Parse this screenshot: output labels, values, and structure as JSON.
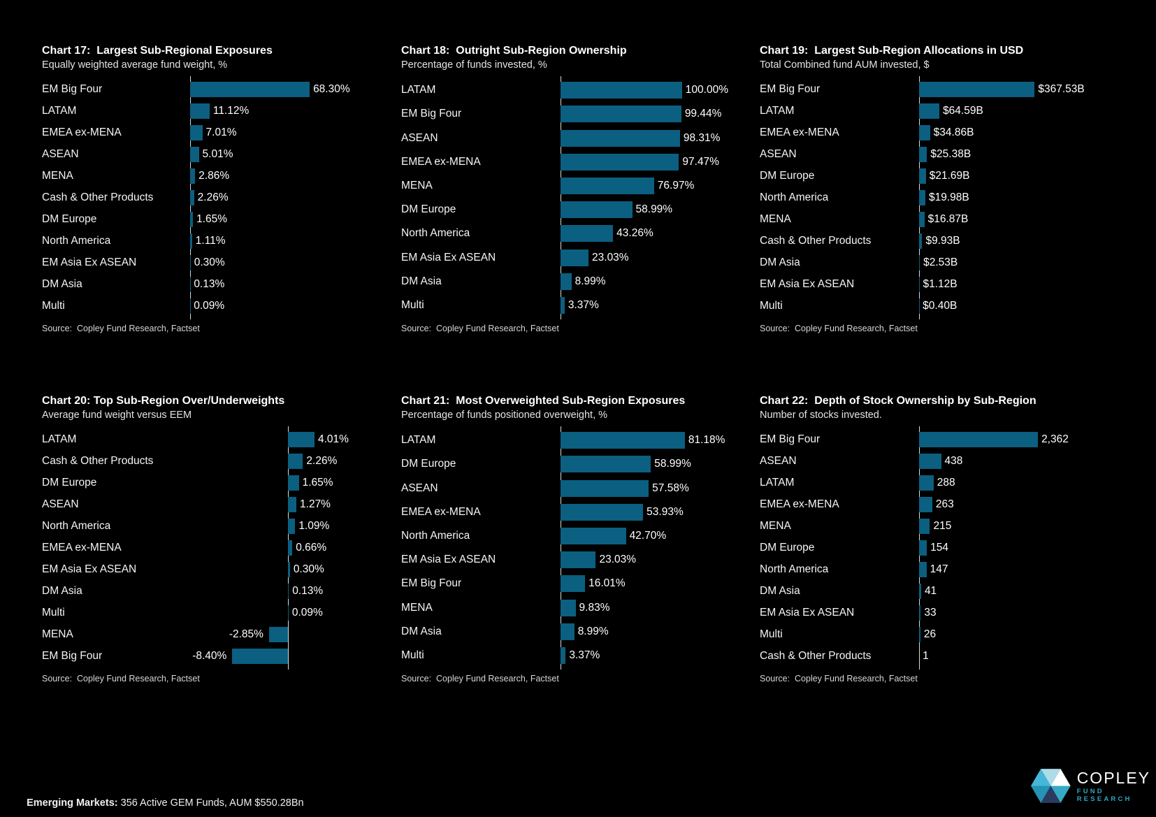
{
  "style": {
    "background": "#000000",
    "bar_color": "#0b5f80",
    "axis_color": "#d9d9d9",
    "logo_sub_color": "#2aa9c2"
  },
  "chart_data": [
    {
      "type": "bar",
      "title": "Chart 17:  Largest Sub-Regional Exposures",
      "subtitle": "Equally weighted average fund weight, %",
      "source": "Source:  Copley Fund Research, Factset",
      "categories": [
        "EM Big Four",
        "LATAM",
        "EMEA ex-MENA",
        "ASEAN",
        "MENA",
        "Cash & Other Products",
        "DM Europe",
        "North America",
        "EM Asia Ex ASEAN",
        "DM Asia",
        "Multi"
      ],
      "values": [
        68.3,
        11.12,
        7.01,
        5.01,
        2.86,
        2.26,
        1.65,
        1.11,
        0.3,
        0.13,
        0.09
      ],
      "value_labels": [
        "68.30%",
        "11.12%",
        "7.01%",
        "5.01%",
        "2.86%",
        "2.26%",
        "1.65%",
        "1.11%",
        "0.30%",
        "0.13%",
        "0.09%"
      ],
      "xlim": [
        0,
        107
      ],
      "grid": false,
      "orientation": "horizontal"
    },
    {
      "type": "bar",
      "title": "Chart 18:  Outright Sub-Region Ownership",
      "subtitle": "Percentage of funds invested, %",
      "source": "Source:  Copley Fund Research, Factset",
      "categories": [
        "LATAM",
        "EM Big Four",
        "ASEAN",
        "EMEA ex-MENA",
        "MENA",
        "DM Europe",
        "North America",
        "EM Asia Ex ASEAN",
        "DM Asia",
        "Multi"
      ],
      "values": [
        100.0,
        99.44,
        98.31,
        97.47,
        76.97,
        58.99,
        43.26,
        23.03,
        8.99,
        3.37
      ],
      "value_labels": [
        "100.00%",
        "99.44%",
        "98.31%",
        "97.47%",
        "76.97%",
        "58.99%",
        "43.26%",
        "23.03%",
        "8.99%",
        "3.37%"
      ],
      "xlim": [
        0,
        145
      ],
      "grid": false,
      "orientation": "horizontal"
    },
    {
      "type": "bar",
      "title": "Chart 19:  Largest Sub-Region Allocations in USD",
      "subtitle": "Total Combined fund AUM invested, $",
      "source": "Source:  Copley Fund Research, Factset",
      "categories": [
        "EM Big Four",
        "LATAM",
        "EMEA ex-MENA",
        "ASEAN",
        "DM Europe",
        "North America",
        "MENA",
        "Cash & Other Products",
        "DM Asia",
        "EM Asia Ex ASEAN",
        "Multi"
      ],
      "values": [
        367.53,
        64.59,
        34.86,
        25.38,
        21.69,
        19.98,
        16.87,
        9.93,
        2.53,
        1.12,
        0.4
      ],
      "value_labels": [
        "$367.53B",
        "$64.59B",
        "$34.86B",
        "$25.38B",
        "$21.69B",
        "$19.98B",
        "$16.87B",
        "$9.93B",
        "$2.53B",
        "$1.12B",
        "$0.40B"
      ],
      "xlim": [
        0,
        560
      ],
      "grid": false,
      "orientation": "horizontal"
    },
    {
      "type": "bar",
      "title": "Chart 20: Top Sub-Region Over/Underweights",
      "subtitle": "Average fund weight versus EEM",
      "source": "Source:  Copley Fund Research, Factset",
      "categories": [
        "LATAM",
        "Cash & Other Products",
        "DM Europe",
        "ASEAN",
        "North America",
        "EMEA ex-MENA",
        "EM Asia Ex ASEAN",
        "DM Asia",
        "Multi",
        "MENA",
        "EM Big Four"
      ],
      "values": [
        4.01,
        2.26,
        1.65,
        1.27,
        1.09,
        0.66,
        0.3,
        0.13,
        0.09,
        -2.85,
        -8.4
      ],
      "value_labels": [
        "4.01%",
        "2.26%",
        "1.65%",
        "1.27%",
        "1.09%",
        "0.66%",
        "0.30%",
        "0.13%",
        "0.09%",
        "-2.85%",
        "-8.40%"
      ],
      "xlim": [
        -15.5,
        13.5
      ],
      "grid": false,
      "orientation": "horizontal"
    },
    {
      "type": "bar",
      "title": "Chart 21:  Most Overweighted Sub-Region Exposures",
      "subtitle": "Percentage of funds positioned overweight, %",
      "source": "Source:  Copley Fund Research, Factset",
      "categories": [
        "LATAM",
        "DM Europe",
        "ASEAN",
        "EMEA ex-MENA",
        "North America",
        "EM Asia Ex ASEAN",
        "EM Big Four",
        "MENA",
        "DM Asia",
        "Multi"
      ],
      "values": [
        81.18,
        58.99,
        57.58,
        53.93,
        42.7,
        23.03,
        16.01,
        9.83,
        8.99,
        3.37
      ],
      "value_labels": [
        "81.18%",
        "58.99%",
        "57.58%",
        "53.93%",
        "42.70%",
        "23.03%",
        "16.01%",
        "9.83%",
        "8.99%",
        "3.37%"
      ],
      "xlim": [
        0,
        115
      ],
      "grid": false,
      "orientation": "horizontal"
    },
    {
      "type": "bar",
      "title": "Chart 22:  Depth of Stock Ownership by Sub-Region",
      "subtitle": "Number of stocks invested.",
      "source": "Source:  Copley Fund Research, Factset",
      "categories": [
        "EM Big Four",
        "ASEAN",
        "LATAM",
        "EMEA ex-MENA",
        "MENA",
        "DM Europe",
        "North America",
        "DM Asia",
        "EM Asia Ex ASEAN",
        "Multi",
        "Cash & Other Products"
      ],
      "values": [
        2362,
        438,
        288,
        263,
        215,
        154,
        147,
        41,
        33,
        26,
        1
      ],
      "value_labels": [
        "2,362",
        "438",
        "288",
        "263",
        "215",
        "154",
        "147",
        "41",
        "33",
        "26",
        "1"
      ],
      "xlim": [
        0,
        3500
      ],
      "grid": false,
      "orientation": "horizontal"
    }
  ],
  "footer": {
    "bold": "Emerging Markets:",
    "text": " 356 Active GEM Funds, AUM $550.28Bn"
  },
  "logo": {
    "name": "COPLEY",
    "sub": "FUND RESEARCH",
    "tri_colors": [
      "#45b8d8",
      "#abdce8",
      "#ffffff",
      "#36a9c4",
      "#2c3a60",
      "#2493b6"
    ]
  }
}
